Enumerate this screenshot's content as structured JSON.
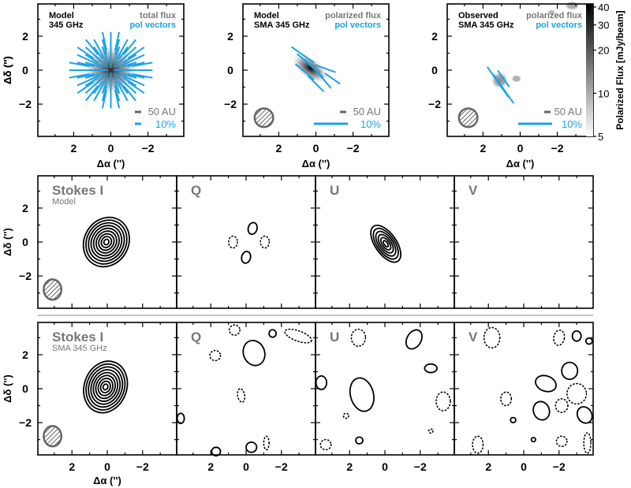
{
  "colors": {
    "vector": "#1aa3e8",
    "grey_label": "#777777",
    "contour": "#000000",
    "beam": "#666666"
  },
  "chart_data": [
    {
      "type": "heatmap",
      "panel": "top-1",
      "title_lines": [
        "Model",
        "345 GHz"
      ],
      "legend": {
        "map": "total flux",
        "vectors": "pol vectors"
      },
      "scalebar": {
        "length_label": "50 AU",
        "pol_label": "10%"
      },
      "xlabel": "Δα ('')",
      "ylabel": "Δδ ('')",
      "xticks": [
        "2",
        "0",
        "−2"
      ],
      "yticks": [
        "2",
        "0",
        "−2"
      ],
      "xlim": [
        4,
        -4
      ],
      "ylim": [
        -4,
        4
      ],
      "blobs": [
        {
          "x": 0,
          "y": 0,
          "rx": 1.6,
          "ry": 1.6,
          "pa": 0,
          "flux": 30
        }
      ],
      "vector_pattern": "radial",
      "beam": null
    },
    {
      "type": "heatmap",
      "panel": "top-2",
      "title_lines": [
        "Model",
        "SMA 345 GHz"
      ],
      "legend": {
        "map": "polarized flux",
        "vectors": "pol vectors"
      },
      "scalebar": {
        "length_label": "50 AU",
        "pol_label": "10%"
      },
      "xlabel": "Δα ('')",
      "ylabel": "Δδ ('')",
      "xticks": [
        "2",
        "0",
        "−2"
      ],
      "yticks": [
        "2",
        "0",
        "−2"
      ],
      "xlim": [
        4,
        -4
      ],
      "ylim": [
        -4,
        4
      ],
      "blobs": [
        {
          "x": 0.3,
          "y": 0.1,
          "rx": 1.2,
          "ry": 0.65,
          "pa": 35,
          "flux": 40
        }
      ],
      "vectors": [
        {
          "x": 0.7,
          "y": 0.9,
          "len": 1.5,
          "pa": 35
        },
        {
          "x": 0.4,
          "y": 0.4,
          "len": 1.6,
          "pa": 40
        },
        {
          "x": 0.1,
          "y": 0.1,
          "len": 1.4,
          "pa": 45
        },
        {
          "x": -0.5,
          "y": 0.1,
          "len": 1.2,
          "pa": 20
        },
        {
          "x": 0.6,
          "y": -0.1,
          "len": 1.3,
          "pa": 40
        },
        {
          "x": -0.3,
          "y": -0.4,
          "len": 1.6,
          "pa": 50
        },
        {
          "x": 0.0,
          "y": -0.8,
          "len": 1.2,
          "pa": 45
        },
        {
          "x": -0.9,
          "y": -0.5,
          "len": 1.0,
          "pa": 35
        }
      ],
      "beam": {
        "x": 2.8,
        "y": -2.8,
        "rx": 0.5,
        "ry": 0.55
      }
    },
    {
      "type": "heatmap",
      "panel": "top-3",
      "title_lines": [
        "Observed",
        "SMA 345 GHz"
      ],
      "legend": {
        "map": "polarized flux",
        "vectors": "pol vectors"
      },
      "scalebar": {
        "length_label": "50 AU",
        "pol_label": "10%"
      },
      "xlabel": "Δα ('')",
      "ylabel": "Δδ ('')",
      "xticks": [
        "2",
        "0",
        "−2"
      ],
      "yticks": [
        "2",
        "0",
        "−2"
      ],
      "xlim": [
        4,
        -4
      ],
      "ylim": [
        -4,
        4
      ],
      "blobs": [
        {
          "x": 1.1,
          "y": -0.6,
          "rx": 0.5,
          "ry": 0.55,
          "pa": 0,
          "flux": 14
        },
        {
          "x": 0.2,
          "y": -0.5,
          "rx": 0.3,
          "ry": 0.25,
          "pa": 0,
          "flux": 9
        },
        {
          "x": -2.8,
          "y": 3.8,
          "rx": 0.45,
          "ry": 0.3,
          "pa": 0,
          "flux": 10
        },
        {
          "x": -1.7,
          "y": 3.4,
          "rx": 0.2,
          "ry": 0.2,
          "pa": 0,
          "flux": 7
        }
      ],
      "vectors": [
        {
          "x": 1.2,
          "y": -0.7,
          "len": 2.0,
          "pa": 55
        },
        {
          "x": 0.9,
          "y": -1.1,
          "len": 1.9,
          "pa": 55
        },
        {
          "x": 0.9,
          "y": -0.5,
          "len": 1.1,
          "pa": 55
        }
      ],
      "beam": {
        "x": 2.8,
        "y": -2.8,
        "rx": 0.5,
        "ry": 0.55
      },
      "colorbar": {
        "label": "Polarized Flux [mJy/beam]",
        "ticks": [
          "40",
          "30",
          "20",
          "10",
          "5"
        ],
        "tick_values": [
          40,
          30,
          20,
          10,
          5
        ],
        "range": [
          5,
          42
        ],
        "scale": "log"
      }
    },
    {
      "type": "contour",
      "rows": [
        {
          "row": "model",
          "panels": [
            {
              "label": "Stokes I",
              "sublabel": "Model",
              "beam": {
                "x": 3.1,
                "y": -2.8,
                "rx": 0.5,
                "ry": 0.6
              },
              "contours": [
                {
                  "x": 0.05,
                  "y": 0.0,
                  "rx": 1.25,
                  "ry": 1.5,
                  "pa": 30,
                  "sign": 1,
                  "levels": 9
                }
              ]
            },
            {
              "label": "Q",
              "contours": [
                {
                  "x": -0.37,
                  "y": 0.8,
                  "rx": 0.25,
                  "ry": 0.35,
                  "pa": 15,
                  "sign": 1
                },
                {
                  "x": 0.0,
                  "y": -0.9,
                  "rx": 0.25,
                  "ry": 0.35,
                  "pa": 15,
                  "sign": 1
                },
                {
                  "x": 0.74,
                  "y": 0.0,
                  "rx": 0.25,
                  "ry": 0.35,
                  "pa": 0,
                  "sign": -1
                },
                {
                  "x": -1.06,
                  "y": 0.0,
                  "rx": 0.25,
                  "ry": 0.35,
                  "pa": 0,
                  "sign": -1
                }
              ]
            },
            {
              "label": "U",
              "contours": [
                {
                  "x": -0.05,
                  "y": -0.1,
                  "rx": 0.6,
                  "ry": 1.25,
                  "pa": -35,
                  "sign": 1,
                  "levels": 6
                }
              ]
            },
            {
              "label": "V",
              "contours": []
            }
          ]
        },
        {
          "row": "observed",
          "panels": [
            {
              "label": "Stokes I",
              "sublabel": "SMA 345 GHz",
              "beam": {
                "x": 3.1,
                "y": -2.8,
                "rx": 0.5,
                "ry": 0.6
              },
              "contours": [
                {
                  "x": 0.1,
                  "y": 0.1,
                  "rx": 1.2,
                  "ry": 1.55,
                  "pa": 20,
                  "sign": 1,
                  "levels": 9
                }
              ]
            },
            {
              "label": "Q",
              "contours": [
                {
                  "x": -0.45,
                  "y": 2.1,
                  "rx": 0.6,
                  "ry": 0.75,
                  "pa": -20,
                  "sign": 1
                },
                {
                  "x": -1.5,
                  "y": 3.25,
                  "rx": 0.2,
                  "ry": 0.22,
                  "pa": 0,
                  "sign": 1
                },
                {
                  "x": 1.75,
                  "y": 1.95,
                  "rx": 0.3,
                  "ry": 0.3,
                  "pa": 0,
                  "sign": -1
                },
                {
                  "x": 0.28,
                  "y": -0.4,
                  "rx": 0.2,
                  "ry": 0.4,
                  "pa": -10,
                  "sign": -1
                },
                {
                  "x": 3.7,
                  "y": -1.75,
                  "rx": 0.2,
                  "ry": 0.3,
                  "pa": 0,
                  "sign": 1
                },
                {
                  "x": -0.3,
                  "y": -3.45,
                  "rx": 0.3,
                  "ry": 0.3,
                  "pa": 0,
                  "sign": 1
                },
                {
                  "x": 0.65,
                  "y": 3.45,
                  "rx": 0.3,
                  "ry": 0.3,
                  "pa": 0,
                  "sign": -1
                },
                {
                  "x": -2.95,
                  "y": 3.1,
                  "rx": 0.8,
                  "ry": 0.3,
                  "pa": 20,
                  "sign": -1
                },
                {
                  "x": -1.15,
                  "y": -3.2,
                  "rx": 0.15,
                  "ry": 0.4,
                  "pa": 0,
                  "sign": -1
                },
                {
                  "x": 1.7,
                  "y": -3.7,
                  "rx": 0.25,
                  "ry": 0.25,
                  "pa": 0,
                  "sign": 1
                }
              ]
            },
            {
              "label": "U",
              "contours": [
                {
                  "x": -1.65,
                  "y": 2.9,
                  "rx": 0.4,
                  "ry": 0.6,
                  "pa": 30,
                  "sign": 1
                },
                {
                  "x": 1.3,
                  "y": -0.35,
                  "rx": 0.65,
                  "ry": 1.0,
                  "pa": -15,
                  "sign": 1
                },
                {
                  "x": -2.6,
                  "y": 1.2,
                  "rx": 0.35,
                  "ry": 0.25,
                  "pa": 0,
                  "sign": 1
                },
                {
                  "x": 1.5,
                  "y": 3.0,
                  "rx": 0.4,
                  "ry": 0.5,
                  "pa": 0,
                  "sign": -1
                },
                {
                  "x": -3.3,
                  "y": -0.75,
                  "rx": 0.4,
                  "ry": 0.55,
                  "pa": 0,
                  "sign": -1
                },
                {
                  "x": 3.6,
                  "y": 0.35,
                  "rx": 0.3,
                  "ry": 0.4,
                  "pa": 0,
                  "sign": 1
                },
                {
                  "x": 1.45,
                  "y": -3.05,
                  "rx": 0.2,
                  "ry": 0.2,
                  "pa": 0,
                  "sign": 1
                },
                {
                  "x": 3.35,
                  "y": -3.3,
                  "rx": 0.3,
                  "ry": 0.3,
                  "pa": 0,
                  "sign": -1
                },
                {
                  "x": 2.2,
                  "y": -1.6,
                  "rx": 0.15,
                  "ry": 0.15,
                  "pa": 0,
                  "sign": -1
                },
                {
                  "x": -2.6,
                  "y": -2.5,
                  "rx": 0.12,
                  "ry": 0.12,
                  "pa": 0,
                  "sign": -1
                }
              ]
            },
            {
              "label": "V",
              "contours": [
                {
                  "x": 1.8,
                  "y": 3.0,
                  "rx": 0.45,
                  "ry": 0.6,
                  "pa": 0,
                  "sign": -1
                },
                {
                  "x": -2.0,
                  "y": 3.0,
                  "rx": 0.3,
                  "ry": 0.45,
                  "pa": 10,
                  "sign": -1
                },
                {
                  "x": -3.0,
                  "y": 3.1,
                  "rx": 0.25,
                  "ry": 0.3,
                  "pa": 0,
                  "sign": 1
                },
                {
                  "x": -3.7,
                  "y": 2.8,
                  "rx": 0.18,
                  "ry": 0.18,
                  "pa": 0,
                  "sign": 1
                },
                {
                  "x": -2.6,
                  "y": 1.05,
                  "rx": 0.45,
                  "ry": 0.5,
                  "pa": 0,
                  "sign": 1
                },
                {
                  "x": -1.25,
                  "y": 0.3,
                  "rx": 0.6,
                  "ry": 0.45,
                  "pa": 20,
                  "sign": 1
                },
                {
                  "x": -3.0,
                  "y": -0.3,
                  "rx": 0.55,
                  "ry": 0.6,
                  "pa": 0,
                  "sign": -1
                },
                {
                  "x": 1.0,
                  "y": -0.6,
                  "rx": 0.3,
                  "ry": 0.4,
                  "pa": 0,
                  "sign": -1
                },
                {
                  "x": -2.15,
                  "y": -1.0,
                  "rx": 0.35,
                  "ry": 0.4,
                  "pa": 0,
                  "sign": -1
                },
                {
                  "x": -1.0,
                  "y": -1.3,
                  "rx": 0.45,
                  "ry": 0.55,
                  "pa": -20,
                  "sign": 1
                },
                {
                  "x": -3.45,
                  "y": -1.55,
                  "rx": 0.4,
                  "ry": 0.5,
                  "pa": -30,
                  "sign": 1
                },
                {
                  "x": 0.6,
                  "y": -1.85,
                  "rx": 0.15,
                  "ry": 0.15,
                  "pa": 0,
                  "sign": 1
                },
                {
                  "x": -0.55,
                  "y": -3.0,
                  "rx": 0.12,
                  "ry": 0.12,
                  "pa": 0,
                  "sign": 1
                },
                {
                  "x": -2.15,
                  "y": -3.1,
                  "rx": 0.3,
                  "ry": 0.3,
                  "pa": 0,
                  "sign": -1
                },
                {
                  "x": 2.6,
                  "y": -3.3,
                  "rx": 0.3,
                  "ry": 0.5,
                  "pa": 0,
                  "sign": -1
                },
                {
                  "x": -3.6,
                  "y": -3.2,
                  "rx": 0.2,
                  "ry": 0.6,
                  "pa": 0,
                  "sign": -1
                }
              ]
            }
          ]
        }
      ],
      "xlabel": "Δα ('')",
      "ylabel": "Δδ ('')",
      "xticks": [
        "2",
        "0",
        "−2"
      ],
      "yticks": [
        "2",
        "0",
        "−2"
      ],
      "xlim": [
        4,
        -4
      ],
      "ylim": [
        -4,
        4
      ]
    }
  ]
}
